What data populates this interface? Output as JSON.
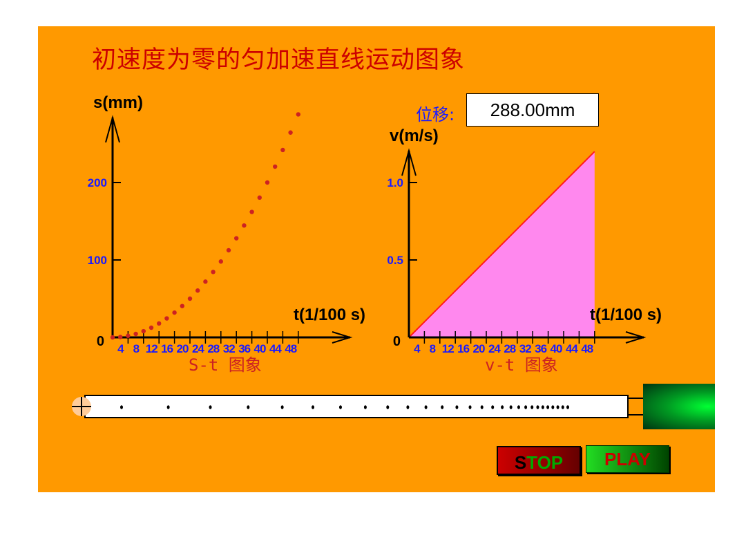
{
  "title": "初速度为零的匀加速直线运动图象",
  "displacement": {
    "label": "位移:",
    "value": "288.00mm"
  },
  "buttons": {
    "stop_part1": "S",
    "stop_part2": "TOP",
    "play": "PLAY"
  },
  "colors": {
    "background": "#ff9900",
    "title": "#cc0000",
    "tick_label": "#1a1aff",
    "dot": "#cc2222",
    "area_fill": "#ff88ee",
    "line": "#ff1a1a",
    "caption": "#cc2222"
  },
  "chart_data": [
    {
      "type": "scatter",
      "ylabel": "s(mm)",
      "xlabel": "t(1/100 s)",
      "origin_label": "0",
      "caption": "S-t 图象",
      "x_ticks": [
        "4",
        "8",
        "12",
        "16",
        "20",
        "24",
        "28",
        "32",
        "36",
        "40",
        "44",
        "48"
      ],
      "y_ticks": [
        "100",
        "200"
      ],
      "xlim": [
        0,
        48
      ],
      "ylim": [
        0,
        288
      ],
      "x": [
        0,
        2,
        4,
        6,
        8,
        10,
        12,
        14,
        16,
        18,
        20,
        22,
        24,
        26,
        28,
        30,
        32,
        34,
        36,
        38,
        40,
        42,
        44,
        46,
        48
      ],
      "y": [
        0,
        0.5,
        2,
        4.5,
        8,
        12.5,
        18,
        24.5,
        32,
        40.5,
        50,
        60.5,
        72,
        84.5,
        98,
        112.5,
        128,
        144.5,
        162,
        180.5,
        200,
        220.5,
        242,
        264.5,
        288
      ]
    },
    {
      "type": "area",
      "ylabel": "v(m/s)",
      "xlabel": "t(1/100 s)",
      "origin_label": "0",
      "caption": "v-t 图象",
      "x_ticks": [
        "4",
        "8",
        "12",
        "16",
        "20",
        "24",
        "28",
        "32",
        "36",
        "40",
        "44",
        "48"
      ],
      "y_ticks": [
        "0.5",
        "1.0"
      ],
      "xlim": [
        0,
        48
      ],
      "ylim": [
        0,
        1.2
      ],
      "x": [
        0,
        48
      ],
      "y": [
        0,
        1.2
      ]
    }
  ],
  "tape_dot_count": 28
}
